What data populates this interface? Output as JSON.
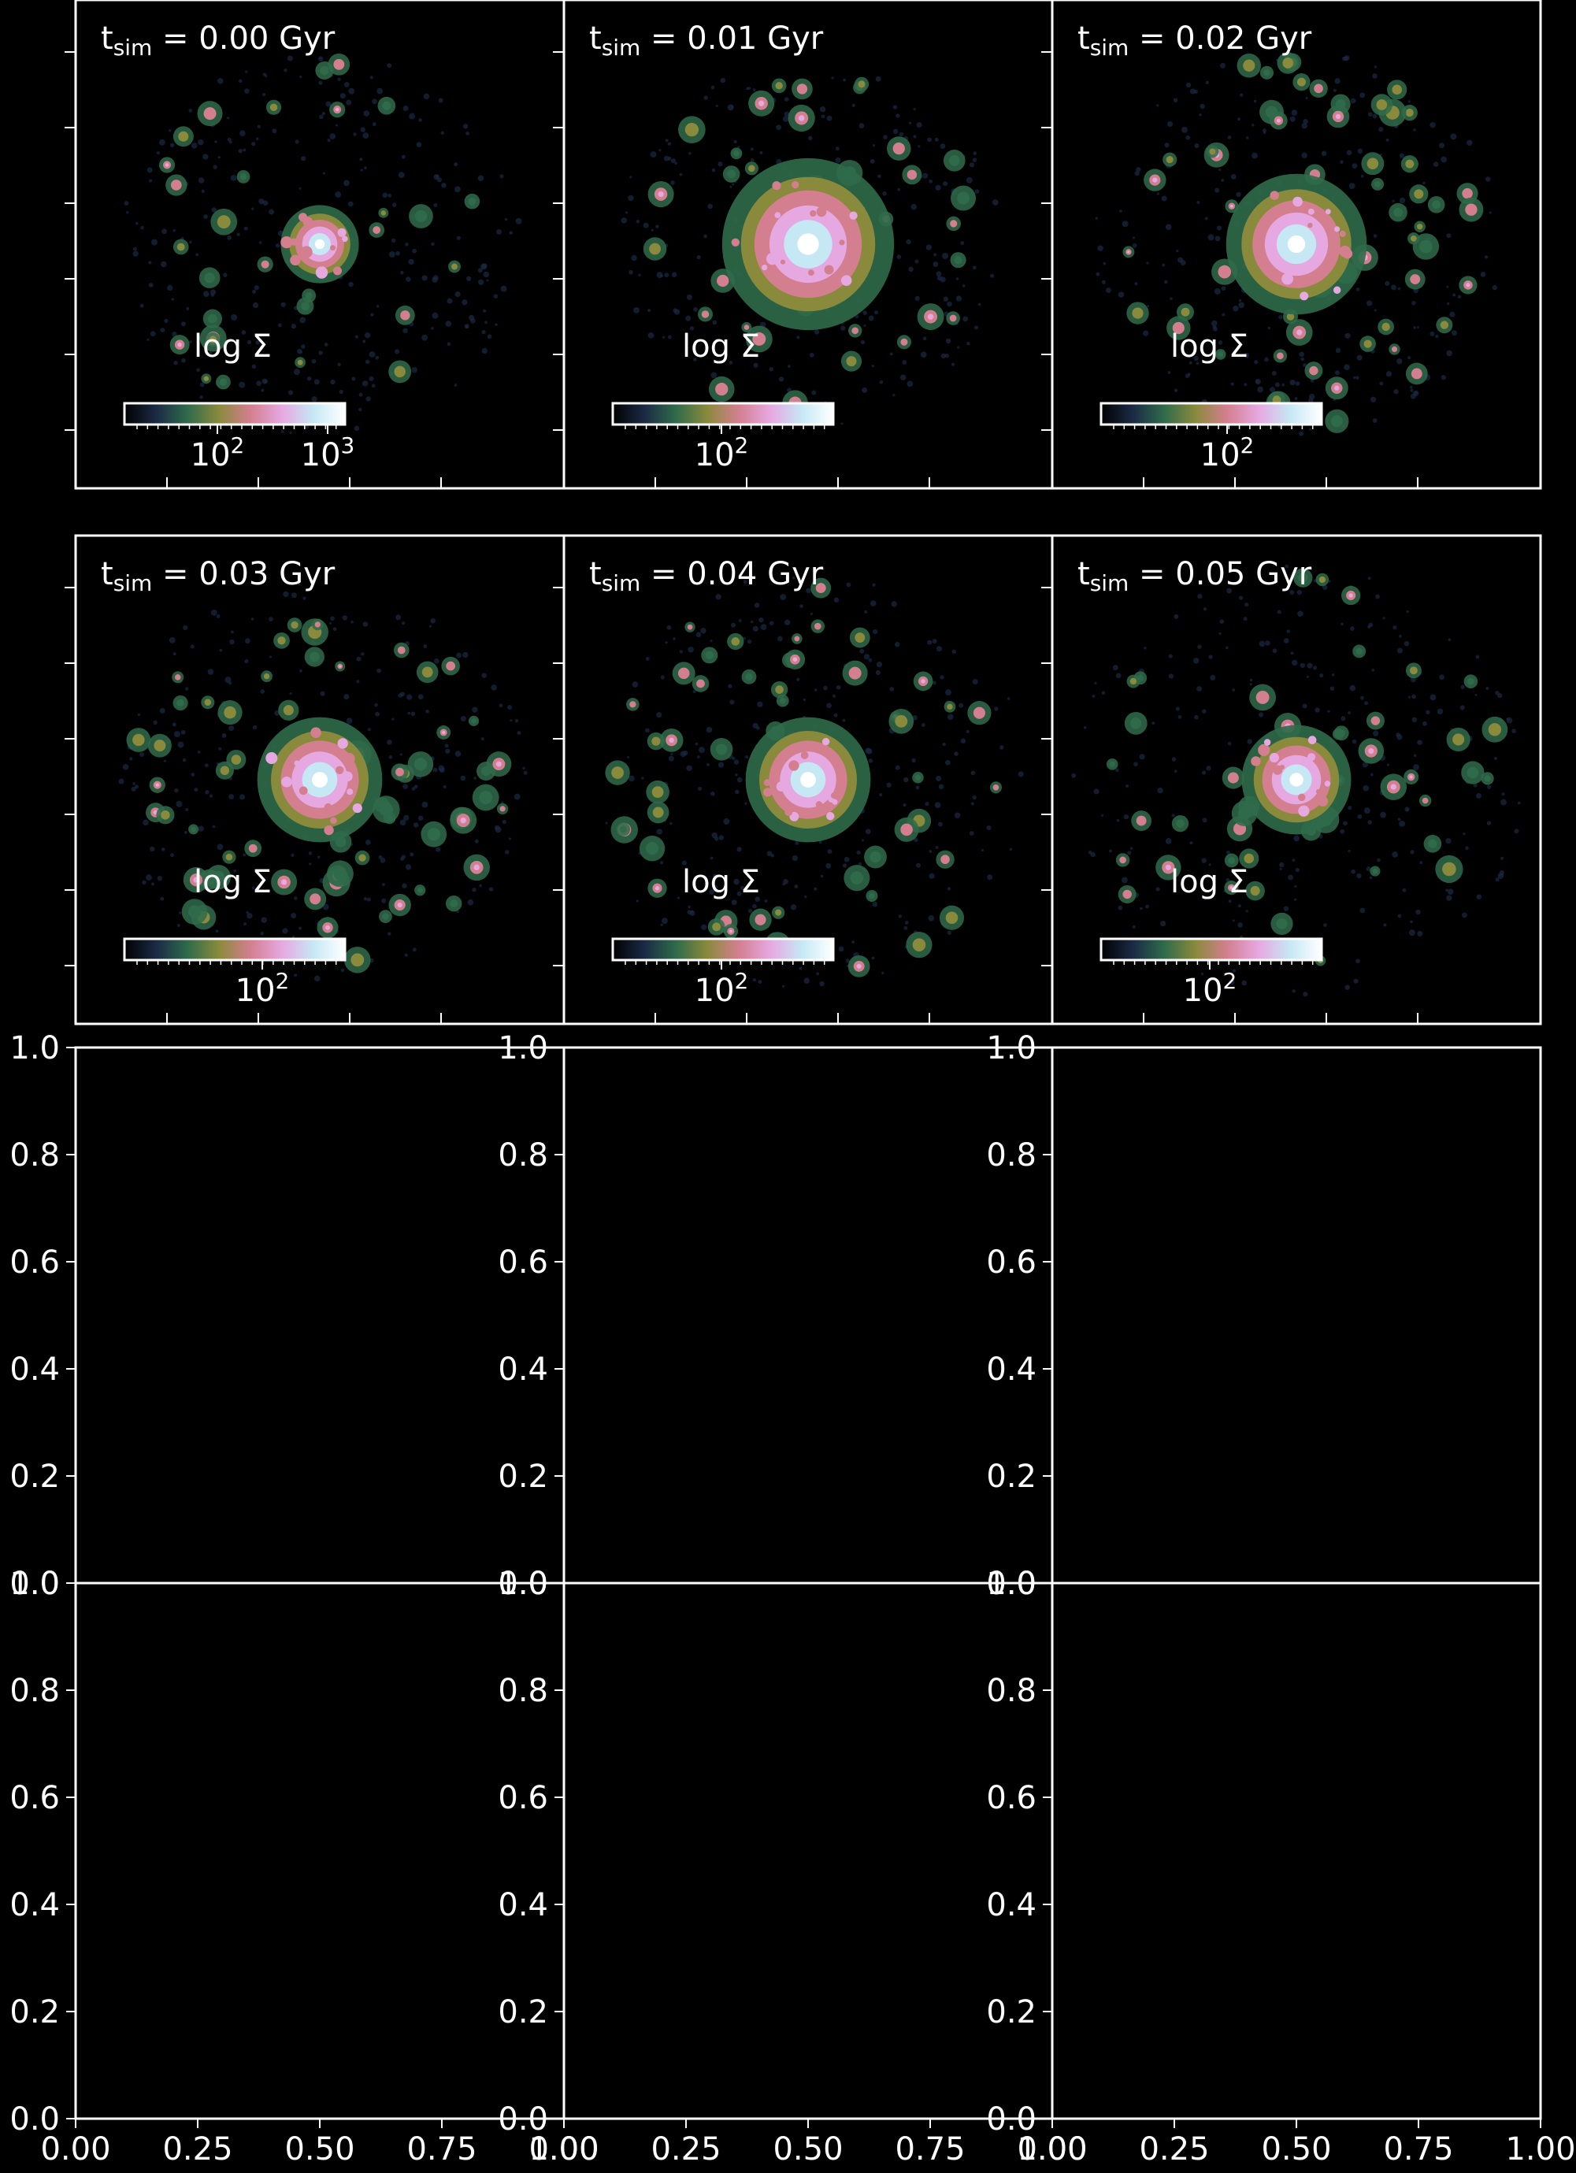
{
  "figure": {
    "background": "#000000",
    "foreground": "#ffffff"
  },
  "chart_data": [
    {
      "type": "heatmap",
      "panel": "snapshot-0",
      "time_label": {
        "var": "t",
        "sub": "sim",
        "text": " = 0.00 Gyr"
      },
      "colorbar": {
        "label": "log Σ",
        "scale": "log",
        "tick_labels": [
          {
            "base": "10",
            "exp": "2"
          },
          {
            "base": "10",
            "exp": "3"
          }
        ]
      },
      "colormap": [
        "#000000",
        "#1b2a45",
        "#2f6b4a",
        "#8a8a3c",
        "#d37f8f",
        "#e6a8e0",
        "#c6e8f5",
        "#ffffff"
      ],
      "map": {
        "core": [
          0.5,
          0.5
        ],
        "core_radius": 0.05,
        "clump_count": 30,
        "spread": 0.75,
        "seed": 11
      }
    },
    {
      "type": "heatmap",
      "panel": "snapshot-1",
      "time_label": {
        "var": "t",
        "sub": "sim",
        "text": " = 0.01 Gyr"
      },
      "colorbar": {
        "label": "log Σ",
        "scale": "log",
        "tick_labels": [
          {
            "base": "10",
            "exp": "2"
          }
        ]
      },
      "colormap": [
        "#000000",
        "#1b2a45",
        "#2f6b4a",
        "#8a8a3c",
        "#d37f8f",
        "#e6a8e0",
        "#c6e8f5",
        "#ffffff"
      ],
      "map": {
        "core": [
          0.5,
          0.5
        ],
        "core_radius": 0.11,
        "clump_count": 38,
        "spread": 0.72,
        "seed": 23
      }
    },
    {
      "type": "heatmap",
      "panel": "snapshot-2",
      "time_label": {
        "var": "t",
        "sub": "sim",
        "text": " = 0.02 Gyr"
      },
      "colorbar": {
        "label": "log Σ",
        "scale": "log",
        "tick_labels": [
          {
            "base": "10",
            "exp": "2"
          }
        ]
      },
      "colormap": [
        "#000000",
        "#1b2a45",
        "#2f6b4a",
        "#8a8a3c",
        "#d37f8f",
        "#e6a8e0",
        "#c6e8f5",
        "#ffffff"
      ],
      "map": {
        "core": [
          0.5,
          0.5
        ],
        "core_radius": 0.09,
        "clump_count": 55,
        "spread": 0.76,
        "seed": 37
      }
    },
    {
      "type": "heatmap",
      "panel": "snapshot-3",
      "time_label": {
        "var": "t",
        "sub": "sim",
        "text": " = 0.03 Gyr"
      },
      "colorbar": {
        "label": "log Σ",
        "scale": "log",
        "tick_labels": [
          {
            "base": "10",
            "exp": "2"
          }
        ]
      },
      "colormap": [
        "#000000",
        "#1b2a45",
        "#2f6b4a",
        "#8a8a3c",
        "#d37f8f",
        "#e6a8e0",
        "#c6e8f5",
        "#ffffff"
      ],
      "map": {
        "core": [
          0.5,
          0.5
        ],
        "core_radius": 0.08,
        "clump_count": 60,
        "spread": 0.78,
        "seed": 41
      }
    },
    {
      "type": "heatmap",
      "panel": "snapshot-4",
      "time_label": {
        "var": "t",
        "sub": "sim",
        "text": " = 0.04 Gyr"
      },
      "colorbar": {
        "label": "log Σ",
        "scale": "log",
        "tick_labels": [
          {
            "base": "10",
            "exp": "2"
          }
        ]
      },
      "colormap": [
        "#000000",
        "#1b2a45",
        "#2f6b4a",
        "#8a8a3c",
        "#d37f8f",
        "#e6a8e0",
        "#c6e8f5",
        "#ffffff"
      ],
      "map": {
        "core": [
          0.5,
          0.5
        ],
        "core_radius": 0.08,
        "clump_count": 50,
        "spread": 0.82,
        "seed": 53
      }
    },
    {
      "type": "heatmap",
      "panel": "snapshot-5",
      "time_label": {
        "var": "t",
        "sub": "sim",
        "text": " = 0.05 Gyr"
      },
      "colorbar": {
        "label": "log Σ",
        "scale": "log",
        "tick_labels": [
          {
            "base": "10",
            "exp": "2"
          }
        ]
      },
      "colormap": [
        "#000000",
        "#1b2a45",
        "#2f6b4a",
        "#8a8a3c",
        "#d37f8f",
        "#e6a8e0",
        "#c6e8f5",
        "#ffffff"
      ],
      "map": {
        "core": [
          0.5,
          0.5
        ],
        "core_radius": 0.07,
        "clump_count": 45,
        "spread": 0.85,
        "seed": 67
      }
    },
    {
      "type": "scatter",
      "panel": "empty-axes-1",
      "xlim": [
        0,
        1
      ],
      "ylim": [
        0,
        1
      ],
      "y_ticks": [
        "0.0",
        "0.2",
        "0.4",
        "0.6",
        "0.8",
        "1.0"
      ],
      "x_ticks": [],
      "series": []
    },
    {
      "type": "scatter",
      "panel": "empty-axes-2",
      "xlim": [
        0,
        1
      ],
      "ylim": [
        0,
        1
      ],
      "y_ticks": [
        "0.0",
        "0.2",
        "0.4",
        "0.6",
        "0.8",
        "1.0"
      ],
      "x_ticks": [],
      "series": []
    },
    {
      "type": "scatter",
      "panel": "empty-axes-3",
      "xlim": [
        0,
        1
      ],
      "ylim": [
        0,
        1
      ],
      "y_ticks": [
        "0.0",
        "0.2",
        "0.4",
        "0.6",
        "0.8",
        "1.0"
      ],
      "x_ticks": [],
      "series": []
    },
    {
      "type": "scatter",
      "panel": "empty-axes-4",
      "xlim": [
        0,
        1
      ],
      "ylim": [
        0,
        1
      ],
      "y_ticks": [
        "0.0",
        "0.2",
        "0.4",
        "0.6",
        "0.8",
        "1.0"
      ],
      "x_ticks": [
        "0.00",
        "0.25",
        "0.50",
        "0.75",
        "1.00"
      ],
      "series": []
    },
    {
      "type": "scatter",
      "panel": "empty-axes-5",
      "xlim": [
        0,
        1
      ],
      "ylim": [
        0,
        1
      ],
      "y_ticks": [
        "0.0",
        "0.2",
        "0.4",
        "0.6",
        "0.8",
        "1.0"
      ],
      "x_ticks": [
        "0.00",
        "0.25",
        "0.50",
        "0.75",
        "1.00"
      ],
      "series": []
    },
    {
      "type": "scatter",
      "panel": "empty-axes-6",
      "xlim": [
        0,
        1
      ],
      "ylim": [
        0,
        1
      ],
      "y_ticks": [
        "0.0",
        "0.2",
        "0.4",
        "0.6",
        "0.8",
        "1.0"
      ],
      "x_ticks": [
        "0.00",
        "0.25",
        "0.50",
        "0.75",
        "1.00"
      ],
      "series": []
    }
  ]
}
